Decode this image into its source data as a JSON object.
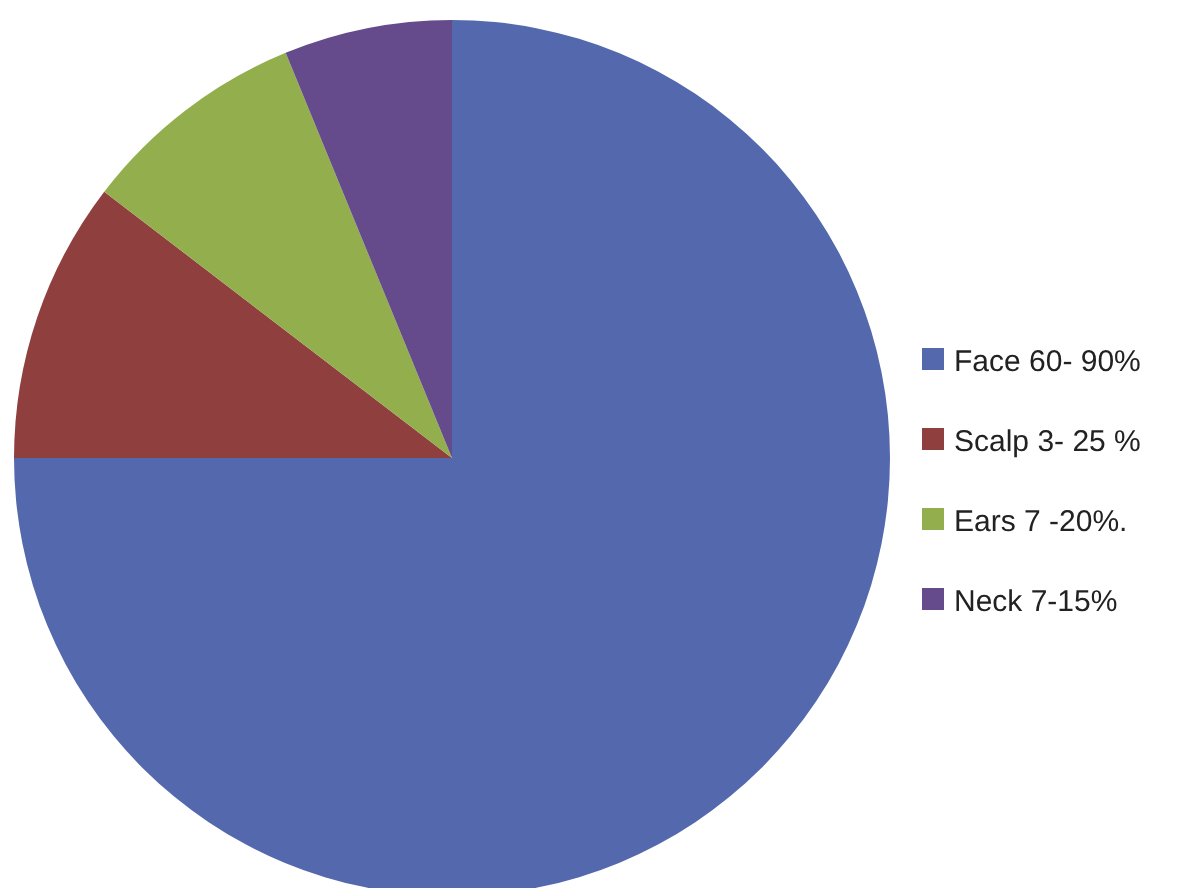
{
  "chart_data": {
    "type": "pie",
    "categories": [
      "Face 60- 90%",
      "Scalp 3- 25 %",
      "Ears 7 -20%.",
      "Neck 7-15%"
    ],
    "values": [
      75,
      10.4,
      8.4,
      6.2
    ],
    "colors": [
      "#5469ad",
      "#8f403e",
      "#93ae4c",
      "#654b8c"
    ],
    "legend": "right"
  }
}
